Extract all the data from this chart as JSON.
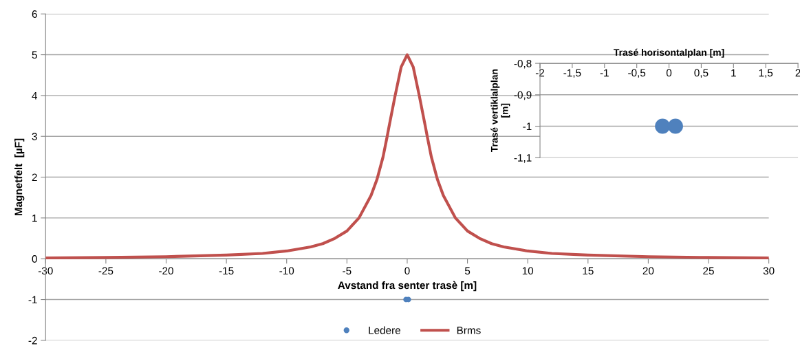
{
  "chart_data": [
    {
      "type": "line",
      "xlabel": "Avstand fra senter trasè [m]",
      "ylabel": "Magnetfelt  [µF]",
      "xlim": [
        -30,
        30
      ],
      "ylim": [
        -2,
        6
      ],
      "xticks": [
        -30,
        -25,
        -20,
        -15,
        -10,
        -5,
        0,
        5,
        10,
        15,
        20,
        25,
        30
      ],
      "yticks": [
        -2,
        -1,
        0,
        1,
        2,
        3,
        4,
        5,
        6
      ],
      "grid": "y",
      "legend": "bottom",
      "series": [
        {
          "name": "Ledere",
          "type": "scatter",
          "marker": "circle",
          "color": "#4f81bd",
          "x": [
            -0.1,
            0.1
          ],
          "values": [
            -1,
            -1
          ]
        },
        {
          "name": "Brms",
          "type": "line",
          "color": "#c0504d",
          "x": [
            -30,
            -25,
            -20,
            -15,
            -12,
            -10,
            -8,
            -7,
            -6,
            -5,
            -4,
            -3,
            -2.5,
            -2,
            -1.66,
            -1.5,
            -1,
            -0.5,
            0,
            0.5,
            1,
            1.5,
            1.66,
            2,
            2.5,
            3,
            4,
            5,
            6,
            7,
            8,
            10,
            12,
            15,
            20,
            25,
            30
          ],
          "values": [
            0.02,
            0.03,
            0.05,
            0.09,
            0.13,
            0.19,
            0.29,
            0.37,
            0.5,
            0.68,
            1.0,
            1.55,
            1.95,
            2.5,
            3.0,
            3.25,
            4.0,
            4.7,
            5.0,
            4.7,
            4.0,
            3.25,
            3.0,
            2.5,
            1.95,
            1.55,
            1.0,
            0.68,
            0.5,
            0.37,
            0.29,
            0.19,
            0.13,
            0.09,
            0.05,
            0.03,
            0.02
          ]
        }
      ]
    },
    {
      "type": "scatter",
      "xlabel": "Trasé horisontalplan [m]",
      "ylabel": "Trasé vertiklalplan [m]",
      "xlim": [
        -2,
        2
      ],
      "ylim": [
        -1.1,
        -0.8
      ],
      "xticks": [
        -2,
        {
          "value": -1.5,
          "label": "-1,5"
        },
        -1,
        {
          "value": -0.5,
          "label": "-0,5"
        },
        0,
        {
          "value": 0.5,
          "label": "0,5"
        },
        1,
        {
          "value": 1.5,
          "label": "1,5"
        },
        2
      ],
      "yticks": [
        {
          "value": -0.8,
          "label": "-0,8"
        },
        {
          "value": -0.9,
          "label": "-0,9"
        },
        -1,
        {
          "value": -1.1,
          "label": "-1,1"
        }
      ],
      "grid": "y",
      "marker": "circle",
      "series": [
        {
          "color": "#4f81bd",
          "x": [
            -0.1,
            0.1
          ],
          "values": [
            -1,
            -1
          ]
        }
      ]
    }
  ]
}
